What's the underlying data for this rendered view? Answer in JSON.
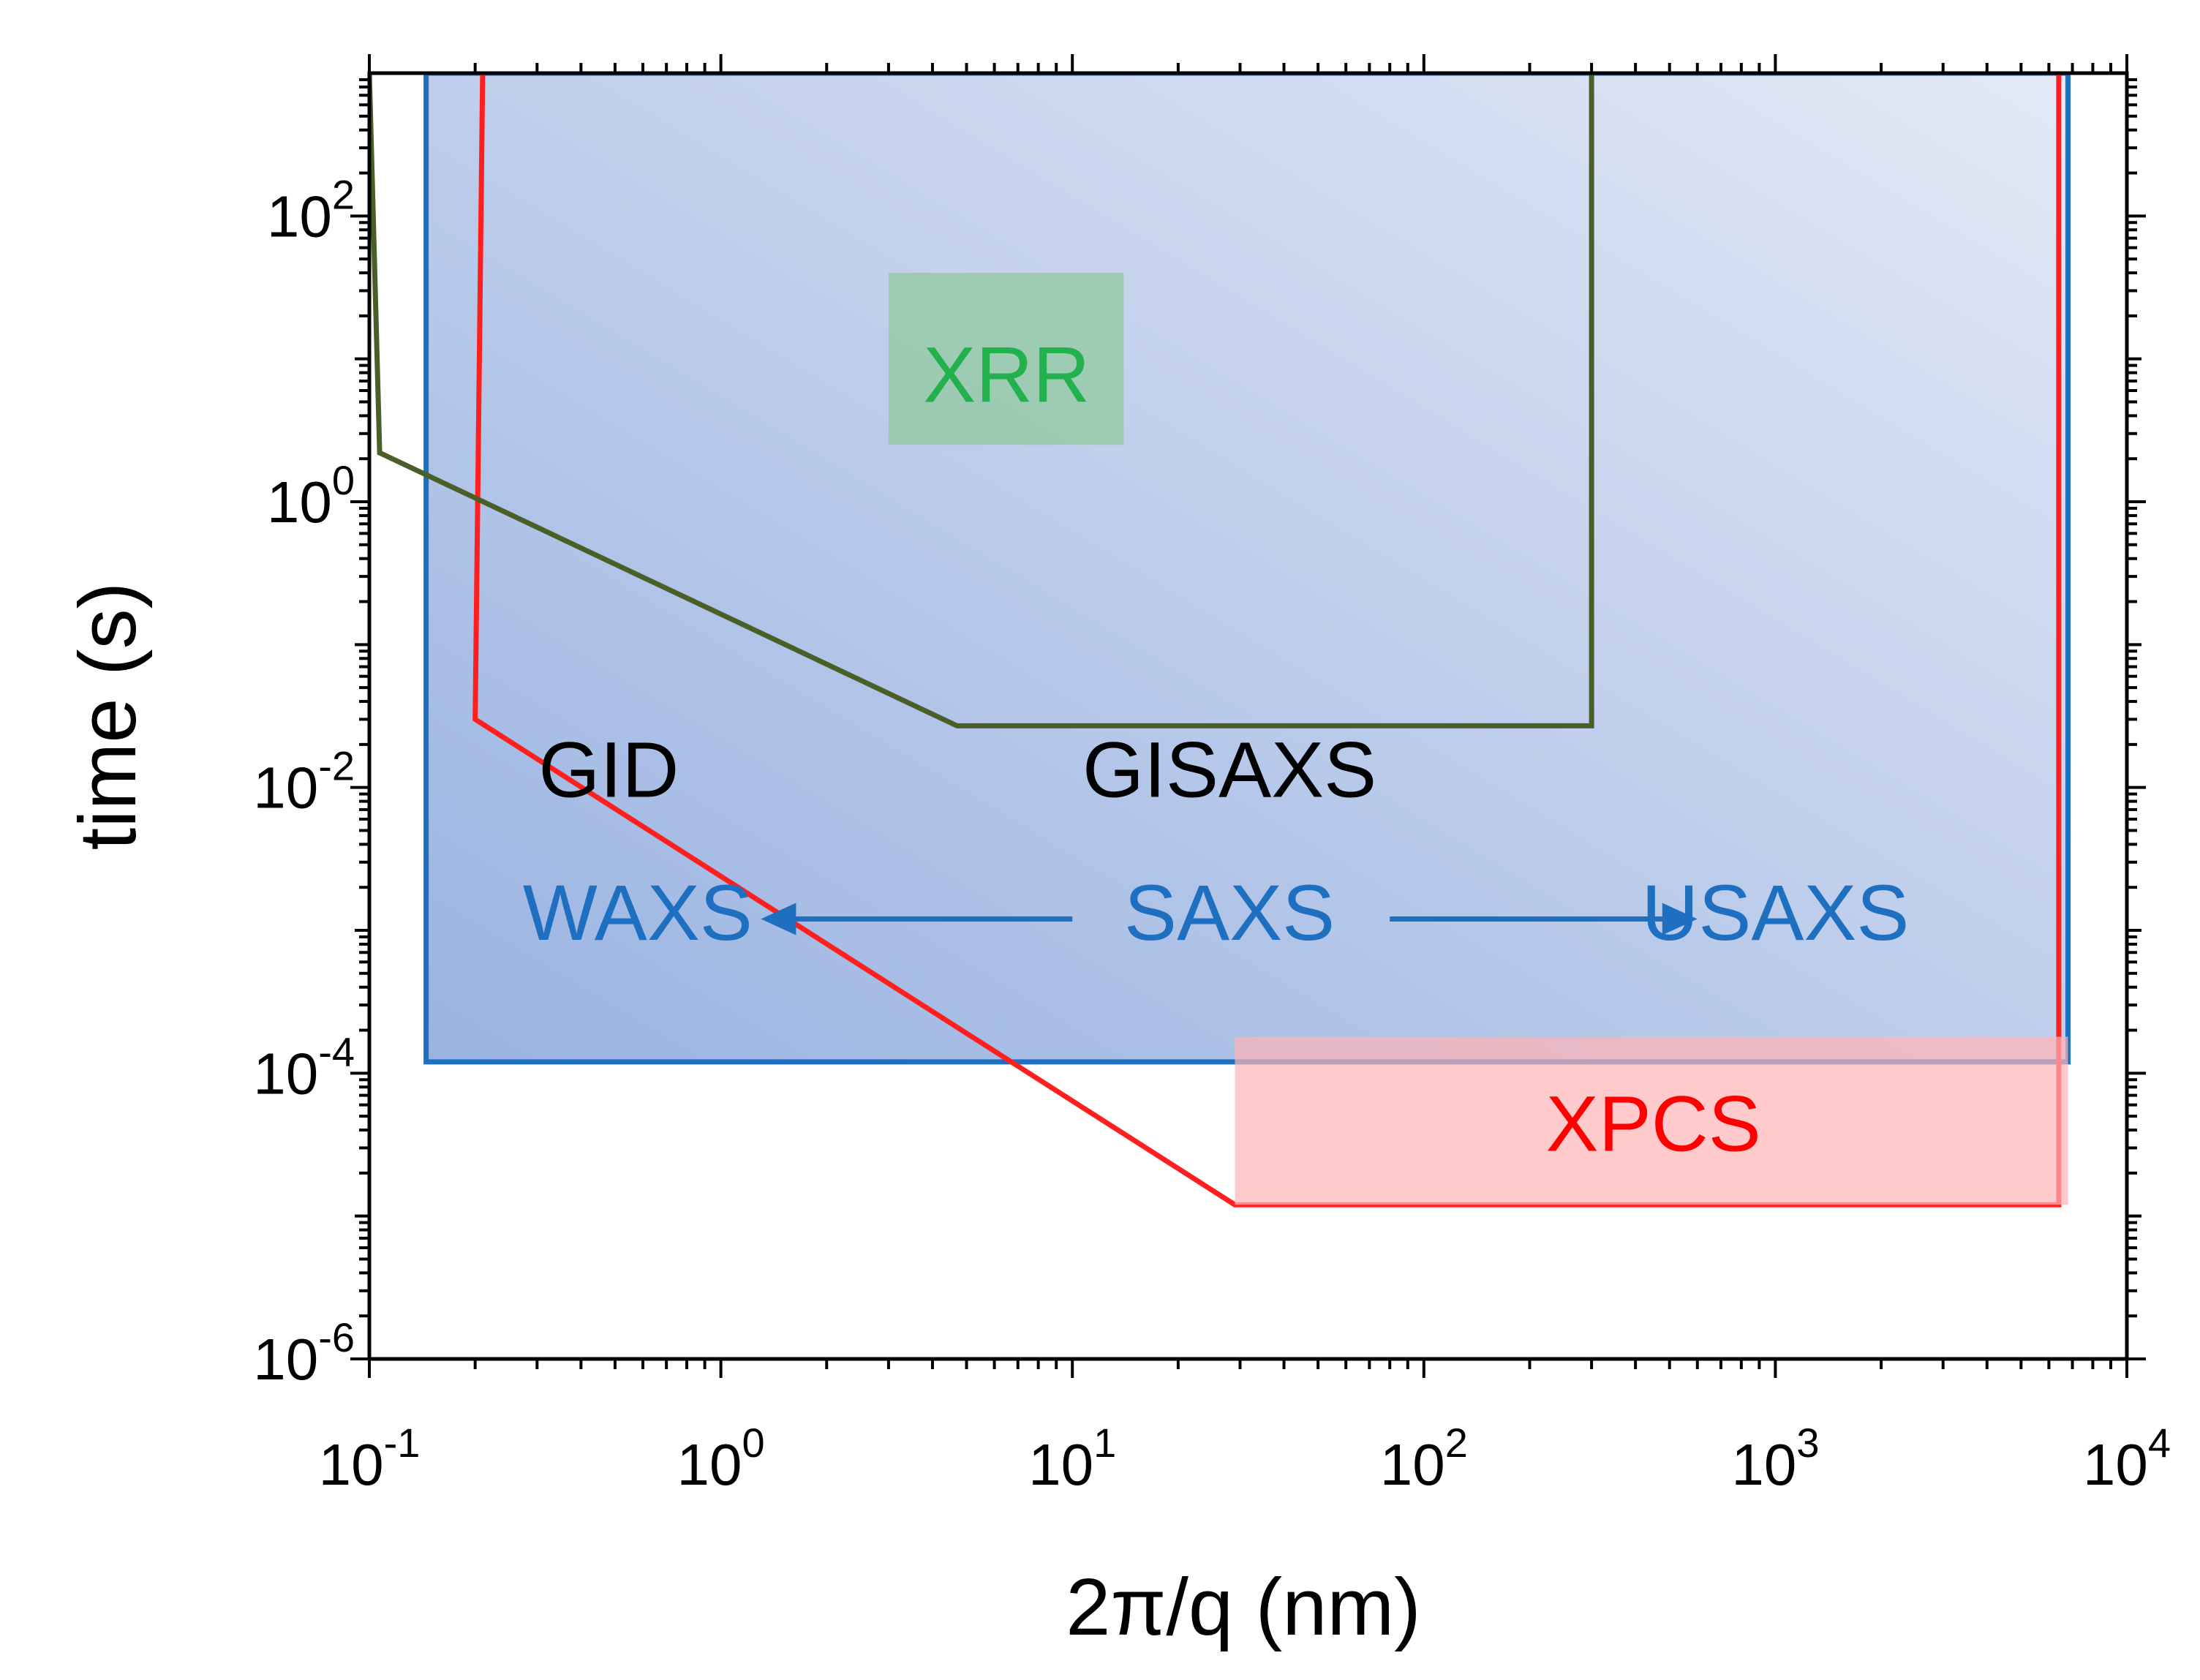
{
  "chart_data": {
    "type": "area",
    "title": "",
    "xlabel": "2π/q (nm)",
    "ylabel": "time (s)",
    "x_scale": "log",
    "y_scale": "log",
    "xlim": [
      0.1,
      10000
    ],
    "ylim": [
      1e-06,
      1000
    ],
    "x_tick_values": [
      0.1,
      1,
      10,
      100,
      1000,
      10000
    ],
    "x_tick_labels": [
      {
        "base": "10",
        "exp": "-1"
      },
      {
        "base": "10",
        "exp": "0"
      },
      {
        "base": "10",
        "exp": "1"
      },
      {
        "base": "10",
        "exp": "2"
      },
      {
        "base": "10",
        "exp": "3"
      },
      {
        "base": "10",
        "exp": "4"
      }
    ],
    "y_tick_values": [
      1e-06,
      0.0001,
      0.01,
      1,
      100
    ],
    "y_tick_labels": [
      {
        "base": "10",
        "exp": "-6"
      },
      {
        "base": "10",
        "exp": "-4"
      },
      {
        "base": "10",
        "exp": "-2"
      },
      {
        "base": "10",
        "exp": "0"
      },
      {
        "base": "10",
        "exp": "2"
      }
    ],
    "grid": false,
    "series": [
      {
        "name": "SAXS / WAXS / USAXS region",
        "color": "#1f6fc0",
        "fill_from": "#99b3e1",
        "fill_to": "#e3e9f6",
        "points": [
          [
            0.145,
            1000
          ],
          [
            0.145,
            0.00012
          ],
          [
            6800,
            0.00012
          ],
          [
            6800,
            1000
          ]
        ]
      },
      {
        "name": "XPCS region",
        "color": "#ff1f1f",
        "points": [
          [
            0.21,
            1000
          ],
          [
            0.2,
            0.03
          ],
          [
            29,
            1.2e-05
          ],
          [
            6400,
            1.2e-05
          ],
          [
            6400,
            1000
          ]
        ]
      },
      {
        "name": "GISAXS region",
        "color": "#4a5e28",
        "points": [
          [
            0.1,
            1000
          ],
          [
            0.107,
            2.2
          ],
          [
            4.7,
            0.027
          ],
          [
            300,
            0.027
          ],
          [
            300,
            1000
          ]
        ]
      }
    ],
    "boxes": [
      {
        "name": "XRR label box",
        "color": "#8ec99b",
        "opacity": 0.7,
        "x": [
          3,
          14
        ],
        "y": [
          2.5,
          40
        ]
      },
      {
        "name": "XPCS label box",
        "color": "#ffb3b7",
        "opacity": 0.7,
        "x": [
          29,
          6800
        ],
        "y": [
          1.2e-05,
          0.00018
        ]
      }
    ],
    "annotations": [
      {
        "name": "xrr",
        "text": "XRR",
        "color": "#22b14c",
        "x": 6.5,
        "y": 7
      },
      {
        "name": "gid",
        "text": "GID",
        "color": "#000000",
        "x": 0.48,
        "y": 0.012
      },
      {
        "name": "gisaxs",
        "text": "GISAXS",
        "color": "#000000",
        "x": 28,
        "y": 0.012
      },
      {
        "name": "waxs",
        "text": "WAXS",
        "color": "#1f6fc0",
        "x": 0.58,
        "y": 0.0012
      },
      {
        "name": "saxs",
        "text": "SAXS",
        "color": "#1f6fc0",
        "x": 28,
        "y": 0.0012
      },
      {
        "name": "usaxs",
        "text": "USAXS",
        "color": "#1f6fc0",
        "x": 1000,
        "y": 0.0012
      },
      {
        "name": "xpcs",
        "text": "XPCS",
        "color": "#ff0000",
        "x": 450,
        "y": 4e-05
      }
    ],
    "arrows": [
      {
        "name": "arrow-to-waxs",
        "color": "#1f6fc0",
        "from": [
          10,
          0.0012
        ],
        "to": [
          1.3,
          0.0012
        ]
      },
      {
        "name": "arrow-to-usaxs",
        "color": "#1f6fc0",
        "from": [
          80,
          0.0012
        ],
        "to": [
          600,
          0.0012
        ]
      }
    ]
  }
}
